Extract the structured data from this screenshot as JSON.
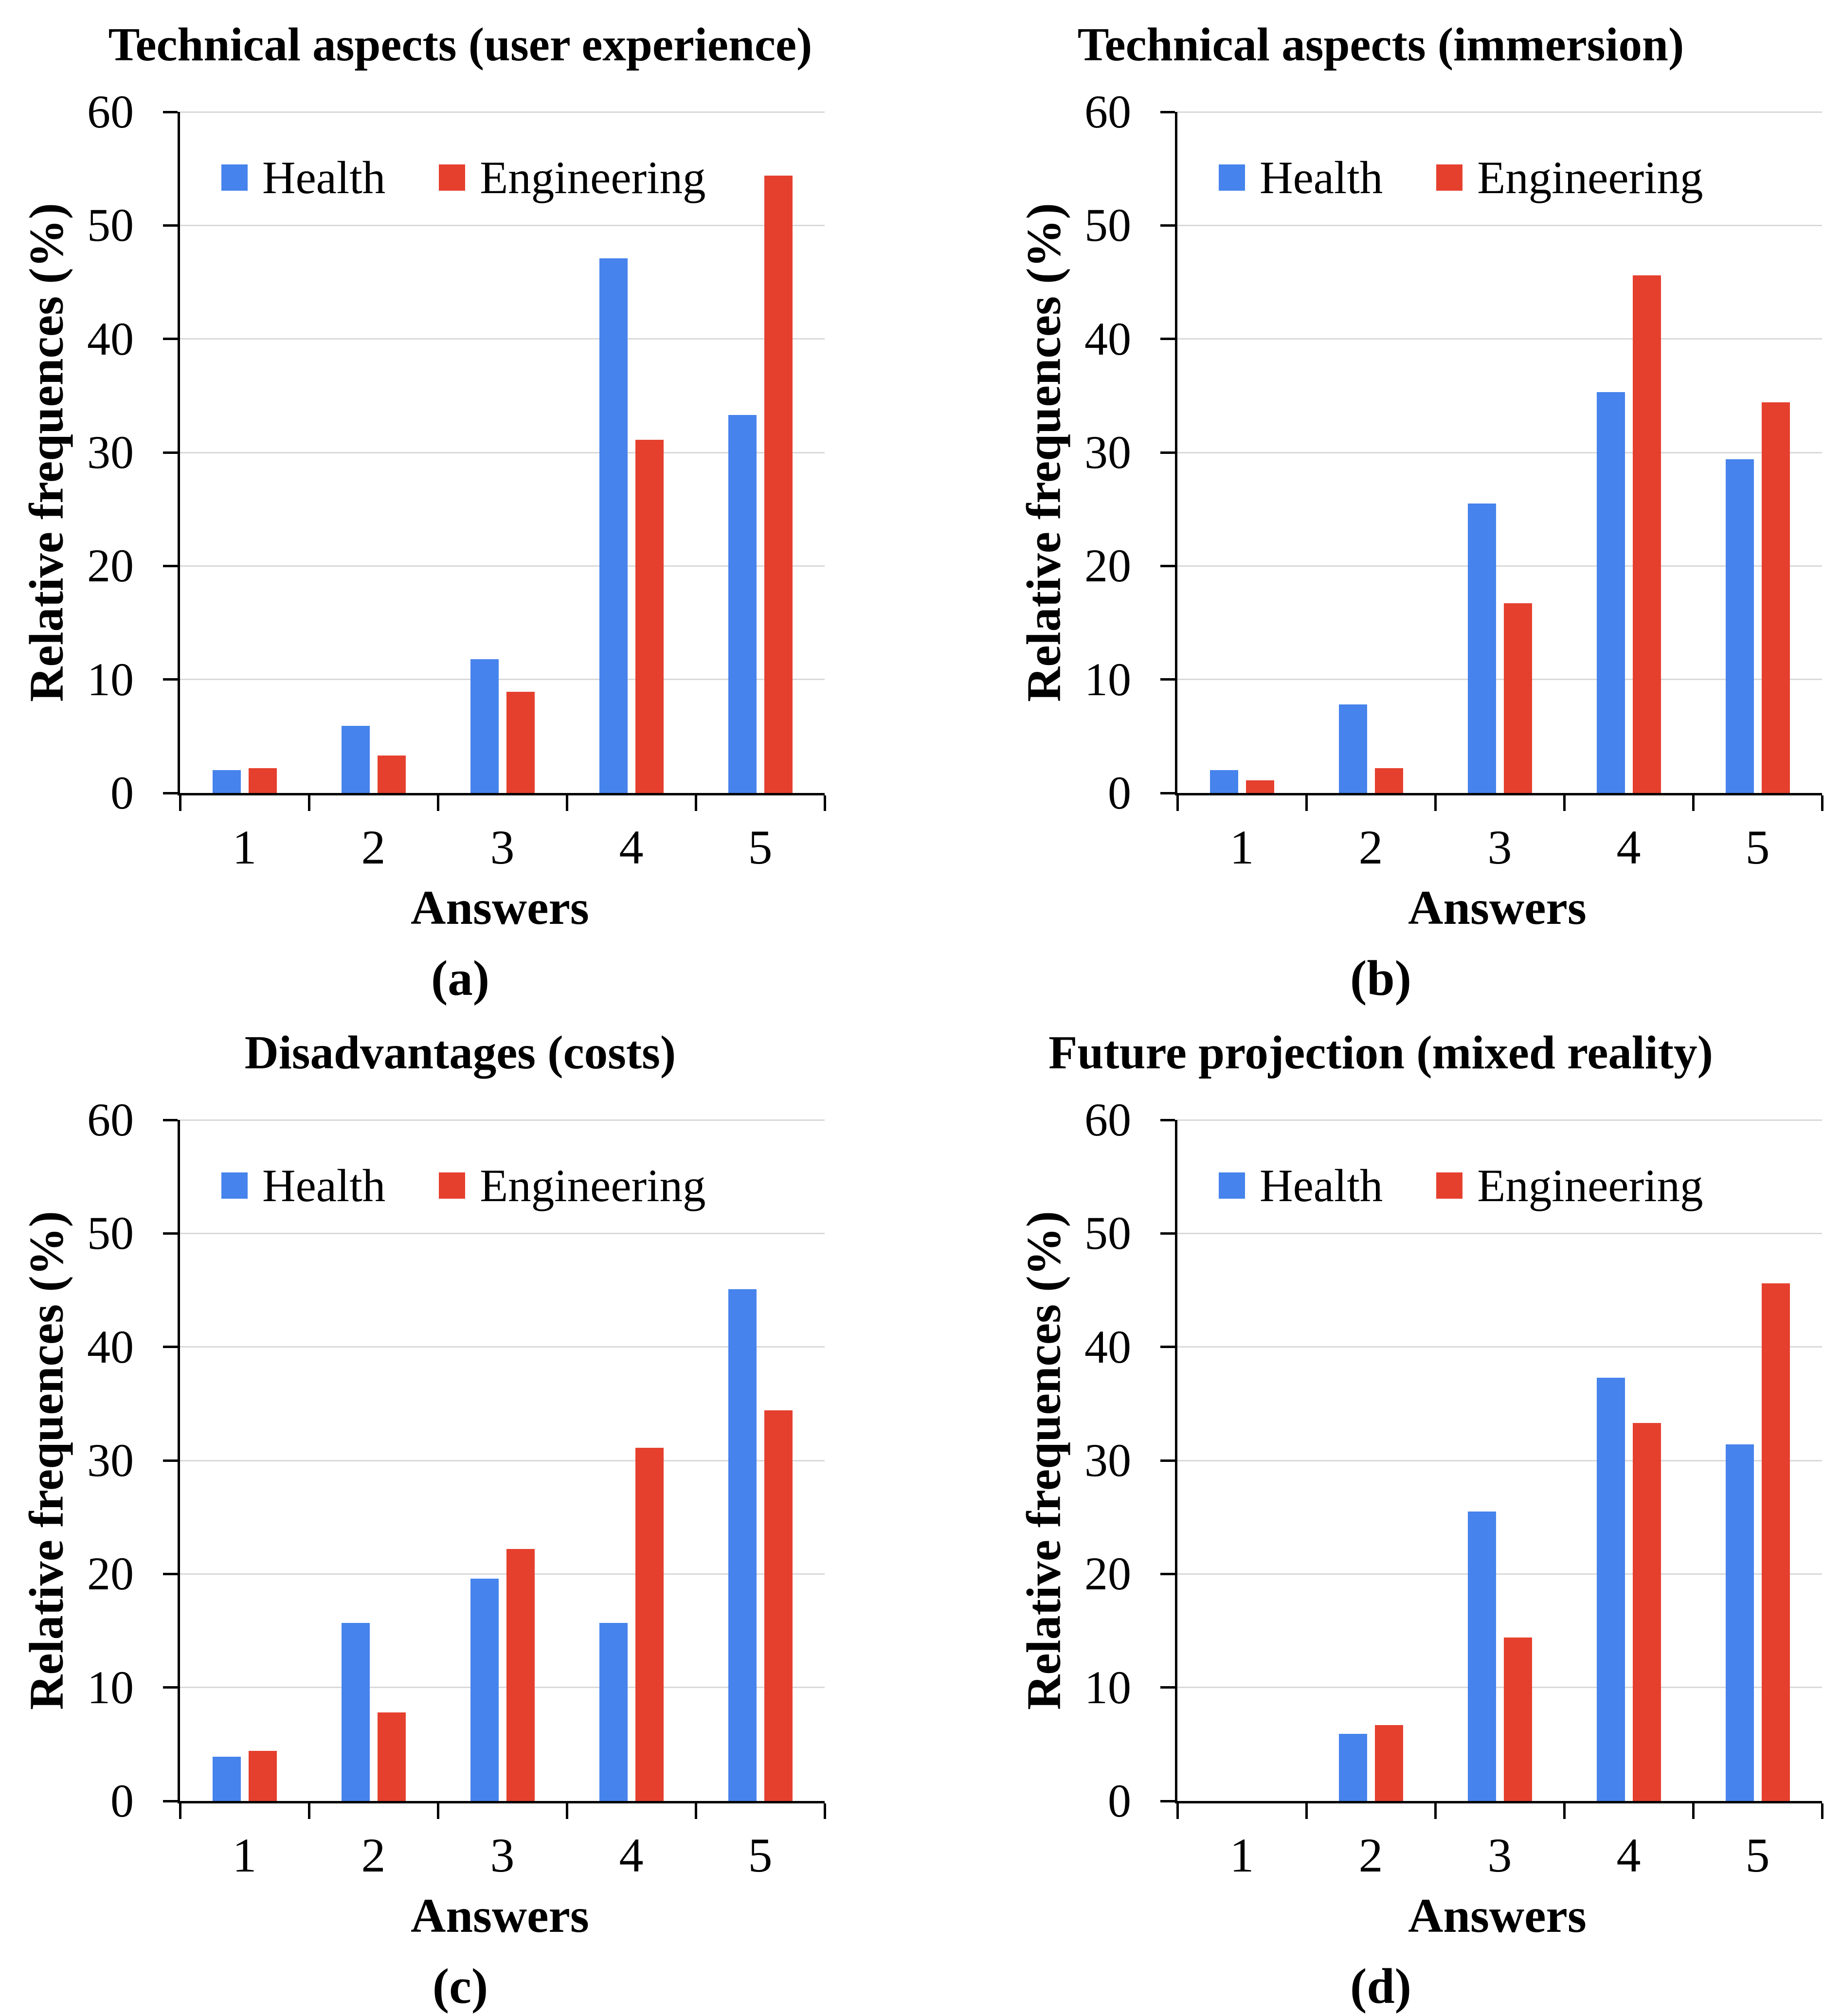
{
  "figure": {
    "layout": "2x2-grid-of-bar-charts",
    "background": "#ffffff"
  },
  "colors": {
    "series": [
      "#4683ec",
      "#e5402e"
    ],
    "health_blue": "#4683ec",
    "engineering_red": "#e5402e",
    "gridline": "#d9d9d9",
    "axis": "#000000",
    "text": "#000000"
  },
  "chart_data": [
    {
      "type": "bar",
      "caption": "(a)",
      "title": "Technical aspects (user experience)",
      "xlabel": "Answers",
      "ylabel": "Relative frequences (%)",
      "ylim": [
        0,
        60
      ],
      "yticks": [
        0,
        10,
        20,
        30,
        40,
        50,
        60
      ],
      "grid": true,
      "legend_position": "top-left-inside",
      "categories": [
        "1",
        "2",
        "3",
        "4",
        "5"
      ],
      "series": [
        {
          "name": "Health",
          "values": [
            2.0,
            5.9,
            11.8,
            47.1,
            33.3
          ]
        },
        {
          "name": "Engineering",
          "values": [
            2.2,
            3.3,
            8.9,
            31.1,
            54.4
          ]
        }
      ]
    },
    {
      "type": "bar",
      "caption": "(b)",
      "title": "Technical aspects (immersion)",
      "xlabel": "Answers",
      "ylabel": "Relative frequences (%)",
      "ylim": [
        0,
        60
      ],
      "yticks": [
        0,
        10,
        20,
        30,
        40,
        50,
        60
      ],
      "grid": true,
      "legend_position": "top-left-inside",
      "categories": [
        "1",
        "2",
        "3",
        "4",
        "5"
      ],
      "series": [
        {
          "name": "Health",
          "values": [
            2.0,
            7.8,
            25.5,
            35.3,
            29.4
          ]
        },
        {
          "name": "Engineering",
          "values": [
            1.1,
            2.2,
            16.7,
            45.6,
            34.4
          ]
        }
      ]
    },
    {
      "type": "bar",
      "caption": "(c)",
      "title": "Disadvantages (costs)",
      "xlabel": "Answers",
      "ylabel": "Relative frequences (%)",
      "ylim": [
        0,
        60
      ],
      "yticks": [
        0,
        10,
        20,
        30,
        40,
        50,
        60
      ],
      "grid": true,
      "legend_position": "top-left-inside",
      "categories": [
        "1",
        "2",
        "3",
        "4",
        "5"
      ],
      "series": [
        {
          "name": "Health",
          "values": [
            3.9,
            15.7,
            19.6,
            15.7,
            45.1
          ]
        },
        {
          "name": "Engineering",
          "values": [
            4.4,
            7.8,
            22.2,
            31.1,
            34.4
          ]
        }
      ]
    },
    {
      "type": "bar",
      "caption": "(d)",
      "title": "Future projection (mixed reality)",
      "xlabel": "Answers",
      "ylabel": "Relative frequences (%)",
      "ylim": [
        0,
        60
      ],
      "yticks": [
        0,
        10,
        20,
        30,
        40,
        50,
        60
      ],
      "grid": true,
      "legend_position": "top-left-inside",
      "categories": [
        "1",
        "2",
        "3",
        "4",
        "5"
      ],
      "series": [
        {
          "name": "Health",
          "values": [
            0,
            5.9,
            25.5,
            37.3,
            31.4
          ]
        },
        {
          "name": "Engineering",
          "values": [
            0,
            6.7,
            14.4,
            33.3,
            45.6
          ]
        }
      ]
    }
  ]
}
